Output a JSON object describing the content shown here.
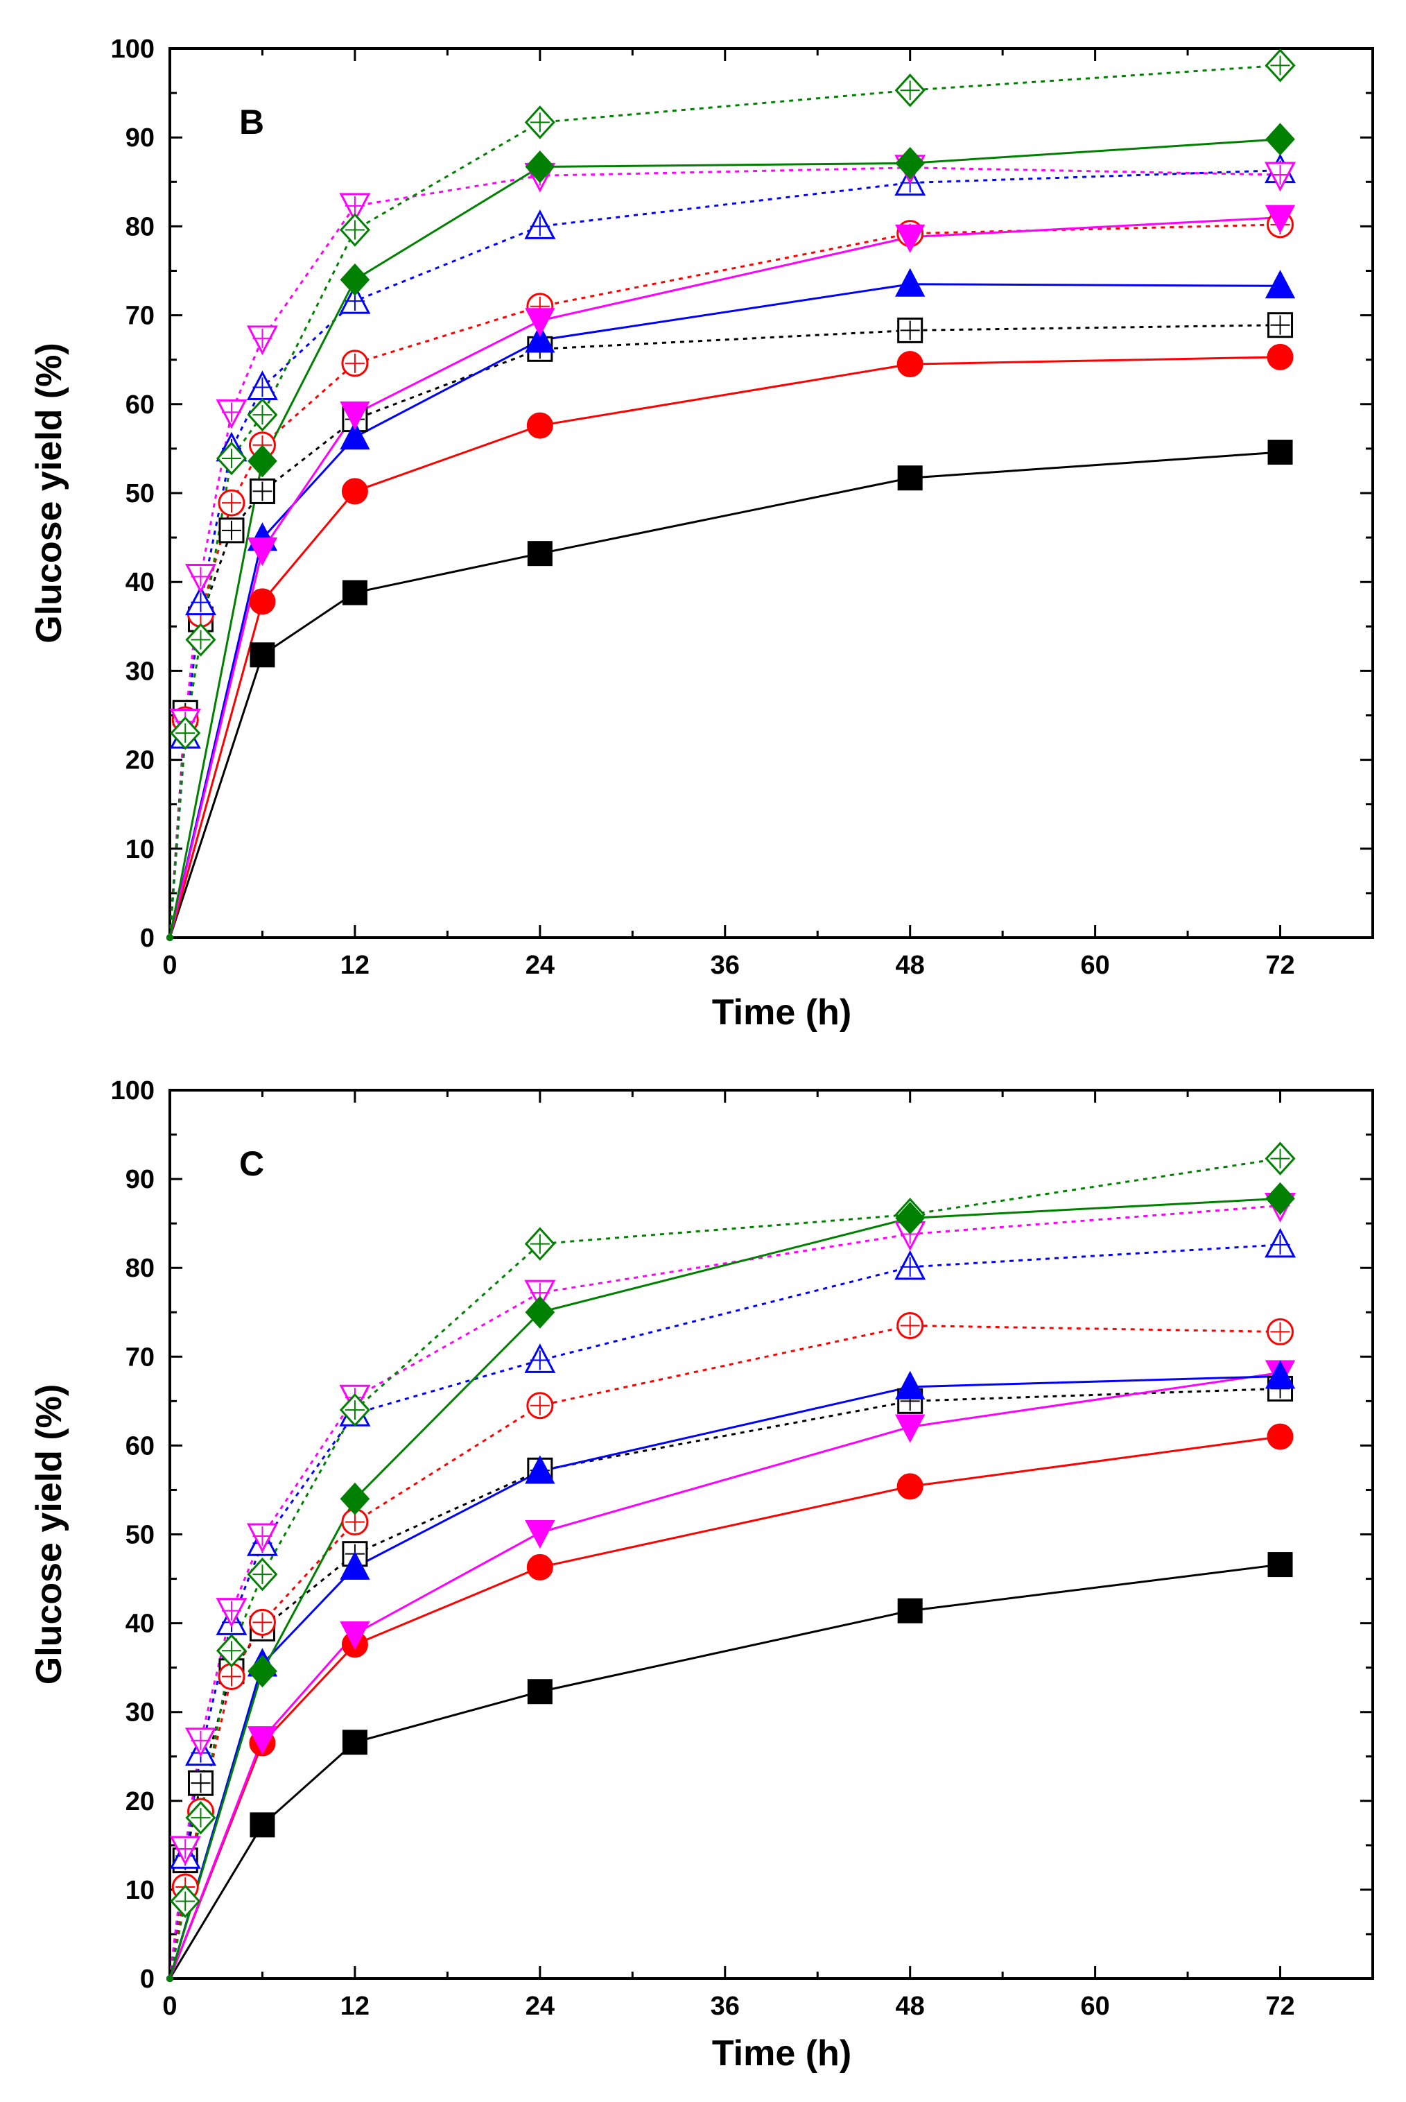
{
  "chart_data": [
    {
      "type": "line",
      "panel_label": "B",
      "xlabel": "Time (h)",
      "ylabel": "Glucose yield (%)",
      "xlim": [
        0,
        78
      ],
      "ylim": [
        0,
        100
      ],
      "xticks": [
        "0",
        "12",
        "24",
        "36",
        "48",
        "60",
        "72"
      ],
      "yticks": [
        "0",
        "10",
        "20",
        "30",
        "40",
        "50",
        "60",
        "70",
        "80",
        "90",
        "100"
      ],
      "x": [
        0,
        1,
        2,
        4,
        6,
        12,
        24,
        48,
        72
      ],
      "series": [
        {
          "name": "black-filled-square",
          "color": "#000000",
          "marker": "square",
          "filled": true,
          "dashed": false,
          "x": [
            0,
            6,
            12,
            24,
            48,
            72
          ],
          "values": [
            0,
            31.8,
            38.8,
            43.2,
            51.7,
            54.6
          ]
        },
        {
          "name": "red-filled-circle",
          "color": "#ff0000",
          "marker": "circle",
          "filled": true,
          "dashed": false,
          "x": [
            0,
            6,
            12,
            24,
            48,
            72
          ],
          "values": [
            0,
            37.8,
            50.2,
            57.6,
            64.5,
            65.3
          ]
        },
        {
          "name": "blue-filled-triangle",
          "color": "#0000ff",
          "marker": "triangle",
          "filled": true,
          "dashed": false,
          "x": [
            0,
            6,
            12,
            24,
            48,
            72
          ],
          "values": [
            0,
            44.9,
            56.3,
            67.2,
            73.5,
            73.3
          ]
        },
        {
          "name": "magenta-filled-triangle-down",
          "color": "#ff00ff",
          "marker": "triangle-down",
          "filled": true,
          "dashed": false,
          "x": [
            0,
            6,
            12,
            24,
            48,
            72
          ],
          "values": [
            0,
            43.6,
            58.9,
            69.4,
            78.8,
            81.0
          ]
        },
        {
          "name": "green-filled-diamond",
          "color": "#008000",
          "marker": "diamond",
          "filled": true,
          "dashed": false,
          "x": [
            0,
            6,
            12,
            24,
            48,
            72
          ],
          "values": [
            0,
            53.6,
            74.0,
            86.7,
            87.1,
            89.8
          ]
        },
        {
          "name": "black-open-square",
          "color": "#000000",
          "marker": "square",
          "filled": false,
          "dashed": true,
          "x": [
            0,
            1,
            2,
            4,
            6,
            12,
            24,
            48,
            72
          ],
          "values": [
            0,
            25.3,
            35.8,
            45.8,
            50.2,
            58.3,
            66.2,
            68.3,
            68.9
          ]
        },
        {
          "name": "red-open-circle",
          "color": "#ff0000",
          "marker": "circle",
          "filled": false,
          "dashed": true,
          "x": [
            0,
            1,
            2,
            4,
            6,
            12,
            24,
            48,
            72
          ],
          "values": [
            0,
            24.5,
            36.4,
            48.9,
            55.4,
            64.6,
            71.0,
            79.2,
            80.2
          ]
        },
        {
          "name": "blue-open-triangle",
          "color": "#0000ff",
          "marker": "triangle",
          "filled": false,
          "dashed": true,
          "x": [
            0,
            1,
            2,
            4,
            6,
            12,
            24,
            48,
            72
          ],
          "values": [
            0,
            22.7,
            37.7,
            55.0,
            61.9,
            71.6,
            80.0,
            84.9,
            86.3
          ]
        },
        {
          "name": "magenta-open-triangle-down",
          "color": "#ff00ff",
          "marker": "triangle-down",
          "filled": false,
          "dashed": true,
          "x": [
            0,
            1,
            2,
            4,
            6,
            12,
            24,
            48,
            72
          ],
          "values": [
            0,
            24.3,
            40.6,
            59.1,
            67.4,
            82.3,
            85.7,
            86.6,
            85.8
          ]
        },
        {
          "name": "green-open-diamond",
          "color": "#008000",
          "marker": "diamond",
          "filled": false,
          "dashed": true,
          "x": [
            0,
            1,
            2,
            4,
            6,
            12,
            24,
            48,
            72
          ],
          "values": [
            0,
            23.0,
            33.5,
            53.9,
            58.8,
            79.6,
            91.7,
            95.3,
            98.1
          ]
        }
      ]
    },
    {
      "type": "line",
      "panel_label": "C",
      "xlabel": "Time (h)",
      "ylabel": "Glucose yield (%)",
      "xlim": [
        0,
        78
      ],
      "ylim": [
        0,
        100
      ],
      "xticks": [
        "0",
        "12",
        "24",
        "36",
        "48",
        "60",
        "72"
      ],
      "yticks": [
        "0",
        "10",
        "20",
        "30",
        "40",
        "50",
        "60",
        "70",
        "80",
        "90",
        "100"
      ],
      "x": [
        0,
        1,
        2,
        4,
        6,
        12,
        24,
        48,
        72
      ],
      "series": [
        {
          "name": "black-filled-square",
          "color": "#000000",
          "marker": "square",
          "filled": true,
          "dashed": false,
          "x": [
            0,
            6,
            12,
            24,
            48,
            72
          ],
          "values": [
            0,
            17.3,
            26.6,
            32.3,
            41.4,
            46.6
          ]
        },
        {
          "name": "red-filled-circle",
          "color": "#ff0000",
          "marker": "circle",
          "filled": true,
          "dashed": false,
          "x": [
            0,
            6,
            12,
            24,
            48,
            72
          ],
          "values": [
            0,
            26.5,
            37.6,
            46.3,
            55.4,
            61.0
          ]
        },
        {
          "name": "magenta-filled-triangle-down",
          "color": "#ff00ff",
          "marker": "triangle-down",
          "filled": true,
          "dashed": false,
          "x": [
            0,
            6,
            12,
            24,
            48,
            72
          ],
          "values": [
            0,
            27.0,
            38.8,
            50.2,
            62.1,
            68.2
          ]
        },
        {
          "name": "blue-filled-triangle",
          "color": "#0000ff",
          "marker": "triangle",
          "filled": true,
          "dashed": false,
          "x": [
            0,
            6,
            12,
            24,
            48,
            72
          ],
          "values": [
            0,
            35.4,
            46.3,
            57.1,
            66.6,
            67.8
          ]
        },
        {
          "name": "green-filled-diamond",
          "color": "#008000",
          "marker": "diamond",
          "filled": true,
          "dashed": false,
          "x": [
            0,
            6,
            12,
            24,
            48,
            72
          ],
          "values": [
            0,
            34.6,
            54.0,
            75.0,
            85.6,
            87.8
          ]
        },
        {
          "name": "black-open-square",
          "color": "#000000",
          "marker": "square",
          "filled": false,
          "dashed": true,
          "x": [
            0,
            1,
            2,
            4,
            6,
            12,
            24,
            48,
            72
          ],
          "values": [
            0,
            13.3,
            22.0,
            34.6,
            39.4,
            47.8,
            57.2,
            65.0,
            66.4
          ]
        },
        {
          "name": "red-open-circle",
          "color": "#ff0000",
          "marker": "circle",
          "filled": false,
          "dashed": true,
          "x": [
            0,
            1,
            2,
            4,
            6,
            12,
            24,
            48,
            72
          ],
          "values": [
            0,
            10.3,
            18.8,
            34.0,
            40.1,
            51.4,
            64.5,
            73.5,
            72.8
          ]
        },
        {
          "name": "blue-open-triangle",
          "color": "#0000ff",
          "marker": "triangle",
          "filled": false,
          "dashed": true,
          "x": [
            0,
            1,
            2,
            4,
            6,
            12,
            24,
            48,
            72
          ],
          "values": [
            0,
            13.8,
            25.4,
            40.1,
            49.0,
            63.6,
            69.6,
            80.1,
            82.6
          ]
        },
        {
          "name": "magenta-open-triangle-down",
          "color": "#ff00ff",
          "marker": "triangle-down",
          "filled": false,
          "dashed": true,
          "x": [
            0,
            1,
            2,
            4,
            6,
            12,
            24,
            48,
            72
          ],
          "values": [
            0,
            14.6,
            26.8,
            41.4,
            49.8,
            65.4,
            77.2,
            83.8,
            87.0
          ]
        },
        {
          "name": "green-open-diamond",
          "color": "#008000",
          "marker": "diamond",
          "filled": false,
          "dashed": true,
          "x": [
            0,
            1,
            2,
            4,
            6,
            12,
            24,
            48,
            72
          ],
          "values": [
            0,
            8.7,
            18.1,
            36.9,
            45.5,
            64.0,
            82.7,
            86.0,
            92.3
          ]
        }
      ]
    }
  ]
}
